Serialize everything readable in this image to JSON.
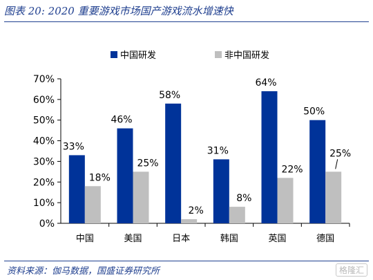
{
  "title": "图表 20:  2020 重要游戏市场国产游戏流水增速快",
  "source": "资料来源：伽马数据，国盛证券研究所",
  "watermark": "格隆汇",
  "chart_data": {
    "type": "bar",
    "categories": [
      "中国",
      "美国",
      "日本",
      "韩国",
      "英国",
      "德国"
    ],
    "series": [
      {
        "name": "中国研发",
        "color": "#003399",
        "values": [
          33,
          46,
          58,
          31,
          64,
          50
        ],
        "labels": [
          "33%",
          "46%",
          "58%",
          "31%",
          "64%",
          "50%"
        ]
      },
      {
        "name": "非中国研发",
        "color": "#bfbfbf",
        "values": [
          18,
          25,
          2,
          8,
          22,
          25
        ],
        "labels": [
          "18%",
          "25%",
          "2%",
          "8%",
          "22%",
          "25%"
        ]
      }
    ],
    "ylim": [
      0,
      70
    ],
    "yticks": [
      "0%",
      "10%",
      "20%",
      "30%",
      "40%",
      "50%",
      "60%",
      "70%"
    ],
    "legend_position": "top",
    "grid": false
  }
}
